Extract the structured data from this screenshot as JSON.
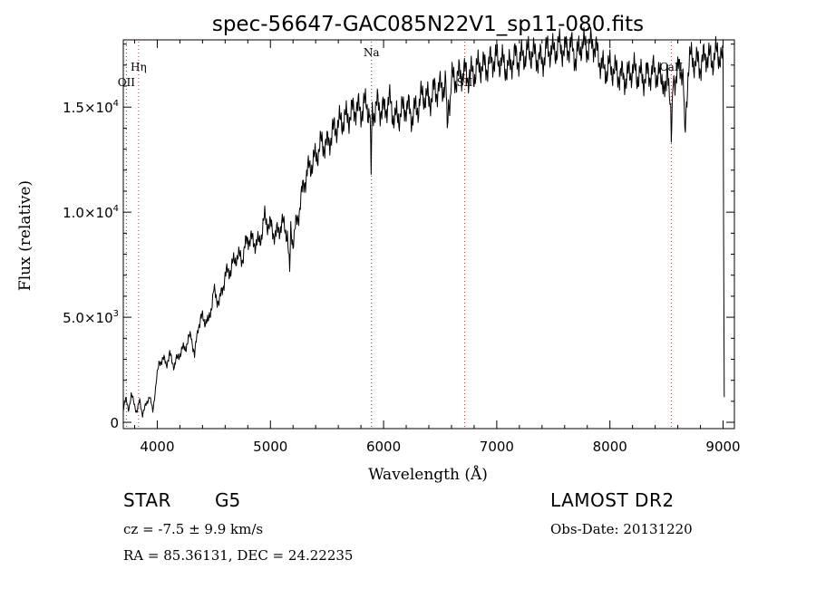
{
  "chart_data": {
    "type": "line",
    "title": "spec-56647-GAC085N22V1_sp11-080.fits",
    "xlabel": "Wavelength (Å)",
    "ylabel": "Flux (relative)",
    "xlim": [
      3700,
      9100
    ],
    "ylim": [
      -300,
      18200
    ],
    "xticks": [
      4000,
      5000,
      6000,
      7000,
      8000,
      9000
    ],
    "xtick_labels": [
      "4000",
      "5000",
      "6000",
      "7000",
      "8000",
      "9000"
    ],
    "yticks": [
      0,
      5000,
      10000,
      15000
    ],
    "ytick_labels": [
      {
        "mantissa": "0",
        "exp": ""
      },
      {
        "mantissa": "5.0×10",
        "exp": "3"
      },
      {
        "mantissa": "1.0×10",
        "exp": "4"
      },
      {
        "mantissa": "1.5×10",
        "exp": "4"
      }
    ],
    "series": [
      {
        "name": "spectrum",
        "x": [
          3700,
          3720,
          3745,
          3770,
          3795,
          3820,
          3845,
          3870,
          3900,
          3930,
          3960,
          3990,
          4020,
          4050,
          4080,
          4110,
          4150,
          4200,
          4250,
          4300,
          4330,
          4360,
          4400,
          4450,
          4500,
          4550,
          4600,
          4650,
          4700,
          4750,
          4800,
          4850,
          4900,
          4950,
          5000,
          5050,
          5100,
          5150,
          5170,
          5180,
          5200,
          5250,
          5300,
          5350,
          5400,
          5450,
          5500,
          5550,
          5600,
          5650,
          5700,
          5750,
          5800,
          5850,
          5880,
          5890,
          5895,
          5900,
          5950,
          6000,
          6050,
          6100,
          6150,
          6200,
          6250,
          6300,
          6350,
          6400,
          6450,
          6500,
          6550,
          6563,
          6600,
          6650,
          6700,
          6750,
          6800,
          6850,
          6900,
          6950,
          7000,
          7050,
          7100,
          7150,
          7200,
          7250,
          7300,
          7350,
          7400,
          7450,
          7500,
          7550,
          7600,
          7650,
          7700,
          7750,
          7800,
          7850,
          7900,
          7950,
          8000,
          8050,
          8100,
          8150,
          8200,
          8250,
          8300,
          8350,
          8400,
          8450,
          8498,
          8520,
          8542,
          8560,
          8600,
          8640,
          8662,
          8700,
          8750,
          8800,
          8850,
          8900,
          8950,
          8980,
          9000,
          9010
        ],
        "y": [
          700,
          1100,
          600,
          1300,
          900,
          500,
          1000,
          400,
          800,
          1300,
          500,
          1900,
          2900,
          3000,
          2800,
          3200,
          2700,
          3300,
          3600,
          4200,
          3100,
          4600,
          5000,
          4700,
          6200,
          5700,
          7000,
          7300,
          7900,
          7800,
          8800,
          8600,
          8500,
          9700,
          9300,
          8900,
          9500,
          9000,
          7000,
          9200,
          8600,
          10000,
          11500,
          12200,
          12600,
          13300,
          13200,
          13800,
          14200,
          14400,
          14600,
          15000,
          14800,
          15200,
          14600,
          11500,
          13800,
          14700,
          15100,
          14800,
          15300,
          14400,
          14700,
          15100,
          14600,
          15000,
          15600,
          15300,
          15800,
          15900,
          16100,
          13900,
          16300,
          16400,
          16700,
          16500,
          16600,
          17000,
          16900,
          17200,
          17300,
          17100,
          16800,
          17400,
          17300,
          17500,
          17600,
          17400,
          17200,
          17800,
          17600,
          17900,
          17700,
          18000,
          17300,
          18000,
          17800,
          18100,
          17400,
          16700,
          16900,
          16700,
          16500,
          16400,
          16800,
          16500,
          16400,
          16600,
          16700,
          16300,
          16400,
          16500,
          13600,
          16300,
          16700,
          16900,
          14300,
          17300,
          17200,
          17000,
          17500,
          17200,
          17600,
          17400,
          17000,
          1200
        ]
      }
    ],
    "lines": [
      {
        "label": "Hη",
        "x": 3835,
        "label_row": 1
      },
      {
        "label": "OII",
        "x": 3727,
        "label_row": 2
      },
      {
        "label": "Na",
        "x": 5893,
        "label_row": 0
      },
      {
        "label": "SII",
        "x": 6717,
        "label_row": 2
      },
      {
        "label": "CaII",
        "x": 8542,
        "label_row": 1
      }
    ]
  },
  "info": {
    "object_class": "STAR",
    "subclass": "G5",
    "survey": "LAMOST DR2",
    "cz": "cz = -7.5 ± 9.9 km/s",
    "obs_date": "Obs-Date: 20131220",
    "radec": "RA =  85.36131, DEC =  24.22235"
  }
}
